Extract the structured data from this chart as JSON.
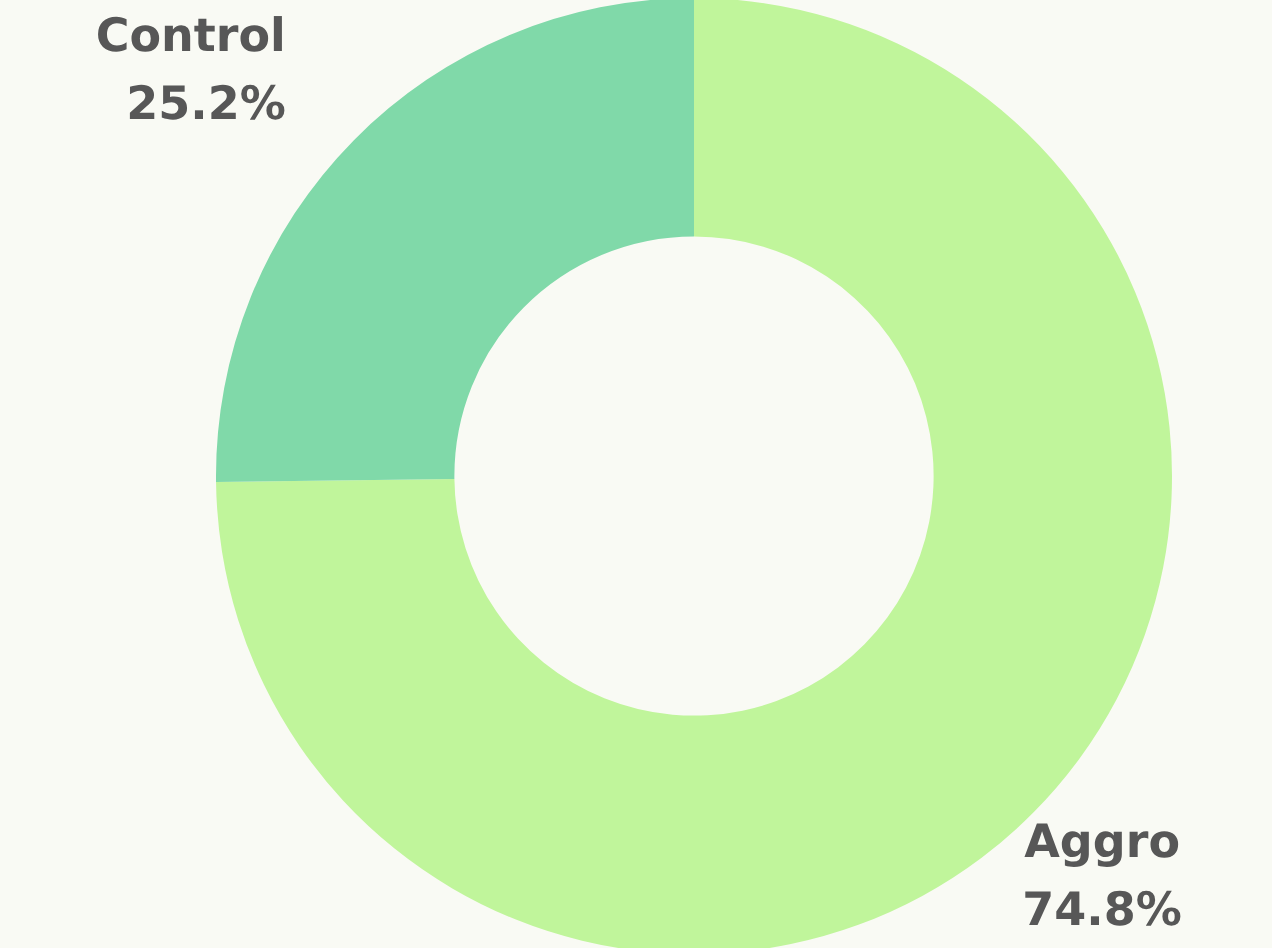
{
  "chart_data": {
    "type": "donut",
    "categories": [
      "Aggro",
      "Control"
    ],
    "values": [
      74.8,
      25.2
    ],
    "colors": [
      "#c0f59b",
      "#80d9a9"
    ],
    "value_labels": [
      "74.8%",
      "25.2%"
    ],
    "legend": false
  }
}
